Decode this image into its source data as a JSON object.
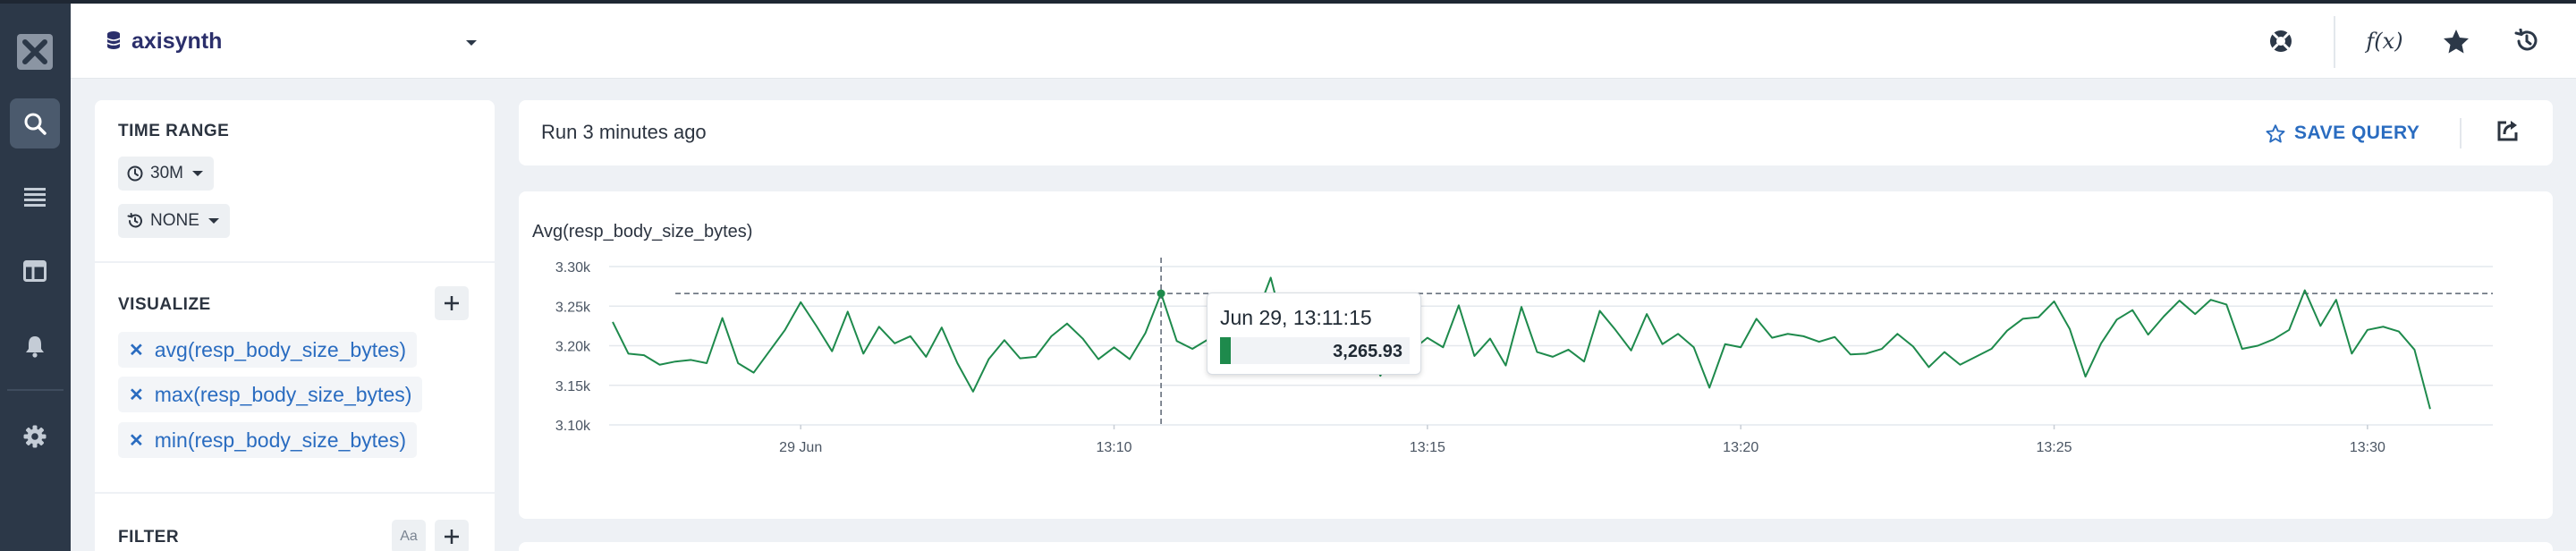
{
  "app": {
    "logo_icon": "close-x-logo-icon",
    "accent": "#2a6cc0",
    "nav_bg": "#2c3848"
  },
  "nav": {
    "items": [
      {
        "icon": "search-icon",
        "active": true
      },
      {
        "icon": "list-icon",
        "active": false
      },
      {
        "icon": "board-icon",
        "active": false
      },
      {
        "icon": "bell-icon",
        "active": false
      },
      {
        "icon": "gear-icon",
        "active": false
      }
    ]
  },
  "header": {
    "dataset_icon": "database-icon",
    "dataset_name": "axisynth",
    "actions": [
      {
        "icon": "help-lifebuoy-icon"
      },
      {
        "icon": "function-fx-icon",
        "label": "f(x)"
      },
      {
        "icon": "star-icon"
      },
      {
        "icon": "history-icon"
      }
    ]
  },
  "sidebar": {
    "time_range": {
      "label": "TIME RANGE",
      "value": "30M",
      "compare_value": "NONE"
    },
    "visualize": {
      "label": "VISUALIZE",
      "items": [
        "avg(resp_body_size_bytes)",
        "max(resp_body_size_bytes)",
        "min(resp_body_size_bytes)"
      ]
    },
    "filter": {
      "label": "FILTER",
      "case_toggle": "Aa"
    }
  },
  "runbar": {
    "run_text": "Run 3 minutes ago",
    "save_query": "SAVE QUERY"
  },
  "chart_data": {
    "type": "line",
    "title": "Avg(resp_body_size_bytes)",
    "line_color": "#1e8a4c",
    "grid": true,
    "ylim": [
      3100,
      3300
    ],
    "y_ticks": [
      "3.10k",
      "3.15k",
      "3.20k",
      "3.25k",
      "3.30k"
    ],
    "y_tick_values": [
      3100,
      3150,
      3200,
      3250,
      3300
    ],
    "x_ticks": [
      "29 Jun",
      "13:10",
      "13:15",
      "13:20",
      "13:25",
      "13:30"
    ],
    "x_tick_minutes": [
      5,
      10,
      15,
      20,
      25,
      30
    ],
    "x_range_minutes": [
      2,
      32
    ],
    "step_seconds": 15,
    "values": [
      3230,
      3190,
      3188,
      3176,
      3180,
      3182,
      3178,
      3235,
      3178,
      3166,
      3193,
      3220,
      3255,
      3225,
      3193,
      3243,
      3190,
      3224,
      3203,
      3212,
      3186,
      3223,
      3178,
      3142,
      3183,
      3207,
      3184,
      3186,
      3212,
      3228,
      3209,
      3183,
      3198,
      3183,
      3216,
      3266,
      3206,
      3196,
      3208,
      3243,
      3220,
      3234,
      3286,
      3209,
      3176,
      3226,
      3242,
      3254,
      3213,
      3162,
      3212,
      3194,
      3210,
      3198,
      3251,
      3187,
      3209,
      3175,
      3249,
      3192,
      3186,
      3195,
      3180,
      3244,
      3220,
      3194,
      3240,
      3202,
      3215,
      3198,
      3147,
      3202,
      3198,
      3234,
      3210,
      3215,
      3212,
      3205,
      3211,
      3189,
      3190,
      3196,
      3215,
      3199,
      3173,
      3192,
      3176,
      3186,
      3196,
      3219,
      3234,
      3236,
      3256,
      3221,
      3161,
      3203,
      3233,
      3245,
      3214,
      3237,
      3257,
      3240,
      3258,
      3252,
      3196,
      3200,
      3208,
      3220,
      3270,
      3225,
      3258,
      3190,
      3220,
      3224,
      3218,
      3195,
      3120
    ],
    "reference_line": 3265.93,
    "tooltip": {
      "time": "Jun 29, 13:11:15",
      "value": "3,265.93",
      "index": 35
    }
  }
}
